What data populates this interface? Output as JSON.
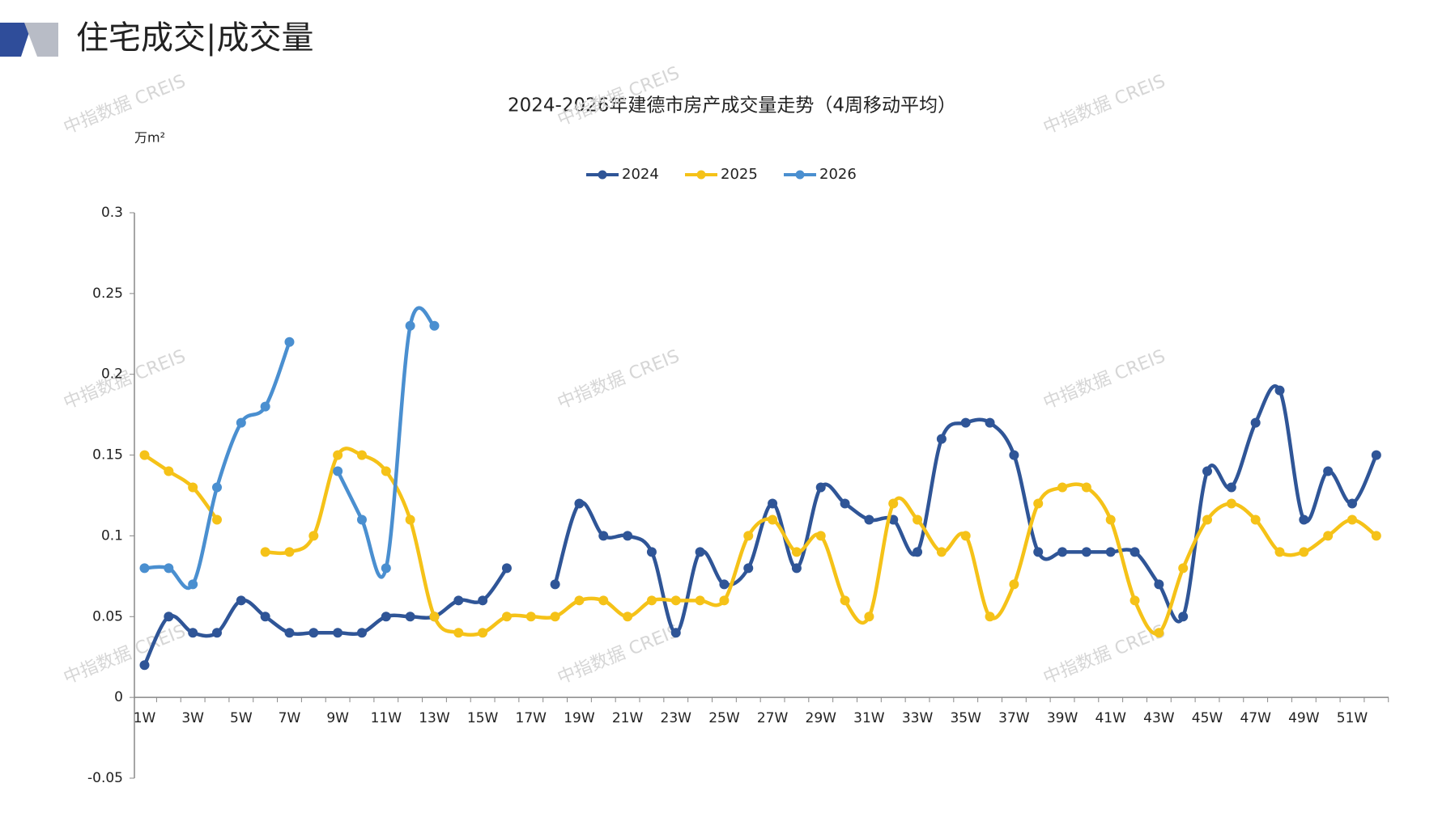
{
  "header": {
    "title": "住宅成交|成交量"
  },
  "watermark": "中指数据 CREIS",
  "chart_data": {
    "type": "line",
    "title": "2024-2026年建德市房产成交量走势（4周移动平均）",
    "y_label": "万m²",
    "categories": [
      "1W",
      null,
      "3W",
      null,
      "5W",
      null,
      "7W",
      null,
      "9W",
      null,
      "11W",
      null,
      "13W",
      null,
      "15W",
      null,
      "17W",
      null,
      "19W",
      null,
      "21W",
      null,
      "23W",
      null,
      "25W",
      null,
      "27W",
      null,
      "29W",
      null,
      "31W",
      null,
      "33W",
      null,
      "35W",
      null,
      "37W",
      null,
      "39W",
      null,
      "41W",
      null,
      "43W",
      null,
      "45W",
      null,
      "47W",
      null,
      "49W",
      null,
      "51W",
      null
    ],
    "series": [
      {
        "name": "2024",
        "color": "#2f5597",
        "values": [
          0.02,
          0.05,
          0.04,
          0.04,
          0.06,
          0.05,
          0.04,
          0.04,
          0.04,
          0.04,
          0.05,
          0.05,
          0.05,
          0.06,
          0.06,
          0.08,
          null,
          0.07,
          0.12,
          0.1,
          0.1,
          0.09,
          0.04,
          0.09,
          0.07,
          0.08,
          0.12,
          0.08,
          0.13,
          0.12,
          0.11,
          0.11,
          0.09,
          0.16,
          0.17,
          0.17,
          0.15,
          0.09,
          0.09,
          0.09,
          0.09,
          0.09,
          0.07,
          0.05,
          0.14,
          0.13,
          0.17,
          0.19,
          0.11,
          0.14,
          0.12,
          0.15
        ]
      },
      {
        "name": "2025",
        "color": "#f5c218",
        "values": [
          0.15,
          0.14,
          0.13,
          0.11,
          null,
          0.09,
          0.09,
          0.1,
          0.15,
          0.15,
          0.14,
          0.11,
          0.05,
          0.04,
          0.04,
          0.05,
          0.05,
          0.05,
          0.06,
          0.06,
          0.05,
          0.06,
          0.06,
          0.06,
          0.06,
          0.1,
          0.11,
          0.09,
          0.1,
          0.06,
          0.05,
          0.12,
          0.11,
          0.09,
          0.1,
          0.05,
          0.07,
          0.12,
          0.13,
          0.13,
          0.11,
          0.06,
          0.04,
          0.08,
          0.11,
          0.12,
          0.11,
          0.09,
          0.09,
          0.1,
          0.11,
          0.1
        ]
      },
      {
        "name": "2026",
        "color": "#4a8fd0",
        "values": [
          0.08,
          0.08,
          0.07,
          0.13,
          0.17,
          0.18,
          0.22,
          null,
          0.14,
          0.11,
          0.08,
          0.23,
          0.23,
          null,
          null,
          null,
          null,
          null,
          null,
          null,
          null,
          null,
          null,
          null,
          null,
          null,
          null,
          null,
          null,
          null,
          null,
          null,
          null,
          null,
          null,
          null,
          null,
          null,
          null,
          null,
          null,
          null,
          null,
          null,
          null,
          null,
          null,
          null,
          null,
          null,
          null,
          null
        ]
      }
    ],
    "ylim": [
      -0.05,
      0.3
    ],
    "yticks": [
      -0.05,
      0,
      0.05,
      0.1,
      0.15,
      0.2,
      0.25,
      0.3
    ],
    "grid": false,
    "legend": "top"
  }
}
